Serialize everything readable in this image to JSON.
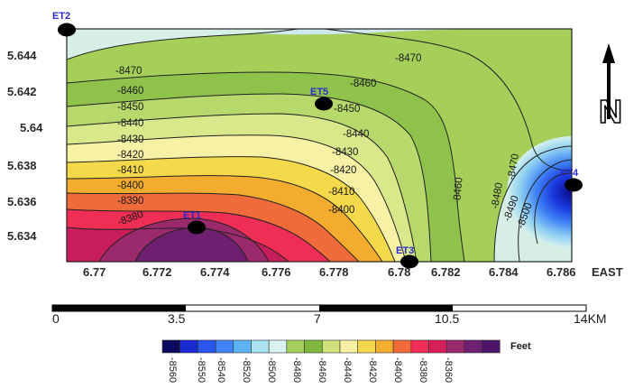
{
  "map": {
    "axis": {
      "y_ticks": [
        "5.644",
        "5.642",
        "5.64",
        "5.638",
        "5.636",
        "5.634"
      ],
      "x_ticks": [
        "6.77",
        "6.772",
        "6.774",
        "6.776",
        "6.778",
        "6.78",
        "6.782",
        "6.784",
        "6.786"
      ],
      "x_suffix": "EAST"
    },
    "north_label": "N",
    "contour_labels": [
      "-8470",
      "-8460",
      "-8450",
      "-8440",
      "-8430",
      "-8420",
      "-8410",
      "-8400",
      "-8390",
      "-8380",
      "-8470",
      "-8460",
      "-8450",
      "-8440",
      "-8430",
      "-8420",
      "-8410",
      "-8400",
      "-8460",
      "-8470",
      "-8480",
      "-8490",
      "-8500"
    ],
    "wells": [
      {
        "name": "ET2"
      },
      {
        "name": "ET5"
      },
      {
        "name": "ET1"
      },
      {
        "name": "ET3"
      },
      {
        "name": "ET4"
      }
    ]
  },
  "scale_bar": {
    "labels": [
      "0",
      "3.5",
      "7",
      "10.5",
      "14KM"
    ]
  },
  "legend": {
    "unit": "Feet",
    "values": [
      "-8560",
      "-8550",
      "-8540",
      "-8520",
      "-8500",
      "-8480",
      "-8460",
      "-8440",
      "-8420",
      "-8400",
      "-8380",
      "-8360"
    ],
    "colors": [
      "#0c0a5e",
      "#1a2ad0",
      "#2a56ee",
      "#3f83f5",
      "#5cb4f6",
      "#a8e0f0",
      "#d9f2ee",
      "#a6cf5a",
      "#80b93e",
      "#cfe27a",
      "#f7f0a2",
      "#f5d84a",
      "#f4ad2c",
      "#f26b39",
      "#ee2e54",
      "#d71f5a",
      "#9a2a6c",
      "#6e1f70",
      "#4b1668"
    ]
  }
}
